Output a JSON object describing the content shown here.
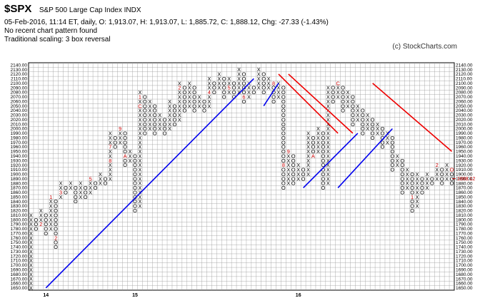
{
  "header": {
    "symbol": "$SPX",
    "name": "S&P 500 Large Cap Index  INDX",
    "stats": "05-Feb-2016, 11:14 ET, daily, O: 1,913.07, H: 1,913.07, L: 1,885.72, C: 1,888.12, Chg: -27.33 (-1.43%)",
    "pattern": "No recent chart pattern found",
    "scaling": "Traditional scaling: 3 box reversal",
    "credit": "(c) StockCharts.com"
  },
  "colors": {
    "x_mark": "#000000",
    "o_mark": "#000000",
    "month_mark": "#cc0000",
    "support": "#0000ee",
    "resistance": "#ee0000",
    "grid": "#999999",
    "last_price": "#cc0000"
  },
  "chart_data": {
    "type": "point-and-figure",
    "box_size": 10,
    "reversal": 3,
    "ylim": [
      1650,
      2140
    ],
    "y_tick_step": 10,
    "x_year_labels": [
      {
        "col": 3,
        "label": "14"
      },
      {
        "col": 21,
        "label": "15"
      },
      {
        "col": 54,
        "label": "16"
      }
    ],
    "last_price": {
      "value": 1888.12,
      "label": "1888.12"
    },
    "columns": [
      {
        "type": "X",
        "low": 1650,
        "high": 1810
      },
      {
        "type": "O",
        "low": 1780,
        "high": 1800
      },
      {
        "type": "X",
        "low": 1790,
        "high": 1820,
        "marks": [
          {
            "price": 1790,
            "label": "2"
          }
        ]
      },
      {
        "type": "O",
        "low": 1770,
        "high": 1810
      },
      {
        "type": "X",
        "low": 1780,
        "high": 1850,
        "marks": [
          {
            "price": 1850,
            "label": "1"
          }
        ]
      },
      {
        "type": "O",
        "low": 1740,
        "high": 1840,
        "marks": [
          {
            "price": 1760,
            "label": "2"
          }
        ]
      },
      {
        "type": "X",
        "low": 1850,
        "high": 1880,
        "marks": [
          {
            "price": 1860,
            "label": "3"
          }
        ]
      },
      {
        "type": "O",
        "low": 1860,
        "high": 1870
      },
      {
        "type": "X",
        "low": 1870,
        "high": 1880
      },
      {
        "type": "O",
        "low": 1840,
        "high": 1870
      },
      {
        "type": "X",
        "low": 1850,
        "high": 1880
      },
      {
        "type": "O",
        "low": 1850,
        "high": 1870
      },
      {
        "type": "X",
        "low": 1860,
        "high": 1890,
        "marks": [
          {
            "price": 1890,
            "label": "5"
          }
        ]
      },
      {
        "type": "O",
        "low": 1870,
        "high": 1880
      },
      {
        "type": "X",
        "low": 1880,
        "high": 1900
      },
      {
        "type": "O",
        "low": 1880,
        "high": 1890
      },
      {
        "type": "X",
        "low": 1890,
        "high": 1990,
        "marks": [
          {
            "price": 1930,
            "label": "8"
          },
          {
            "price": 1960,
            "label": "7"
          }
        ]
      },
      {
        "type": "O",
        "low": 1960,
        "high": 1980
      },
      {
        "type": "X",
        "low": 1970,
        "high": 2000,
        "marks": [
          {
            "price": 2000,
            "label": "9"
          }
        ]
      },
      {
        "type": "O",
        "low": 1920,
        "high": 1990,
        "marks": [
          {
            "price": 1940,
            "label": "A"
          }
        ]
      },
      {
        "type": "X",
        "low": 1930,
        "high": 1950
      },
      {
        "type": "O",
        "low": 1820,
        "high": 1940
      },
      {
        "type": "X",
        "low": 1830,
        "high": 2080,
        "marks": [
          {
            "price": 2050,
            "label": "C"
          },
          {
            "price": 2070,
            "label": "1"
          }
        ]
      },
      {
        "type": "O",
        "low": 1990,
        "high": 2070
      },
      {
        "type": "X",
        "low": 2000,
        "high": 2060
      },
      {
        "type": "O",
        "low": 1990,
        "high": 2050
      },
      {
        "type": "X",
        "low": 2000,
        "high": 2030
      },
      {
        "type": "O",
        "low": 1990,
        "high": 2020
      },
      {
        "type": "X",
        "low": 2000,
        "high": 2060
      },
      {
        "type": "O",
        "low": 2010,
        "high": 2050
      },
      {
        "type": "X",
        "low": 2020,
        "high": 2100,
        "marks": [
          {
            "price": 2090,
            "label": "2"
          }
        ]
      },
      {
        "type": "O",
        "low": 2040,
        "high": 2090
      },
      {
        "type": "X",
        "low": 2050,
        "high": 2100
      },
      {
        "type": "O",
        "low": 2040,
        "high": 2090
      },
      {
        "type": "X",
        "low": 2050,
        "high": 2070
      },
      {
        "type": "O",
        "low": 2040,
        "high": 2060
      },
      {
        "type": "X",
        "low": 2050,
        "high": 2110,
        "marks": [
          {
            "price": 2080,
            "label": "4"
          }
        ]
      },
      {
        "type": "O",
        "low": 2080,
        "high": 2100
      },
      {
        "type": "X",
        "low": 2090,
        "high": 2120
      },
      {
        "type": "O",
        "low": 2070,
        "high": 2110
      },
      {
        "type": "X",
        "low": 2080,
        "high": 2110,
        "marks": [
          {
            "price": 2090,
            "label": "5"
          }
        ]
      },
      {
        "type": "O",
        "low": 2070,
        "high": 2100
      },
      {
        "type": "X",
        "low": 2080,
        "high": 2130
      },
      {
        "type": "O",
        "low": 2060,
        "high": 2120,
        "marks": [
          {
            "price": 2070,
            "label": "6"
          }
        ]
      },
      {
        "type": "X",
        "low": 2070,
        "high": 2100
      },
      {
        "type": "O",
        "low": 2080,
        "high": 2090
      },
      {
        "type": "X",
        "low": 2090,
        "high": 2130
      },
      {
        "type": "O",
        "low": 2080,
        "high": 2120
      },
      {
        "type": "X",
        "low": 2090,
        "high": 2110
      },
      {
        "type": "O",
        "low": 2060,
        "high": 2100,
        "marks": [
          {
            "price": 2100,
            "label": "8"
          }
        ]
      },
      {
        "type": "X",
        "low": 2070,
        "high": 2100
      },
      {
        "type": "O",
        "low": 1870,
        "high": 2090,
        "marks": [
          {
            "price": 1920,
            "label": "8"
          }
        ]
      },
      {
        "type": "X",
        "low": 1880,
        "high": 1950,
        "marks": [
          {
            "price": 1950,
            "label": "9"
          }
        ]
      },
      {
        "type": "O",
        "low": 1880,
        "high": 1940
      },
      {
        "type": "X",
        "low": 1890,
        "high": 1920
      },
      {
        "type": "O",
        "low": 1890,
        "high": 1910
      },
      {
        "type": "X",
        "low": 1900,
        "high": 1990
      },
      {
        "type": "O",
        "low": 1940,
        "high": 1980,
        "marks": [
          {
            "price": 1940,
            "label": "A"
          }
        ]
      },
      {
        "type": "X",
        "low": 1950,
        "high": 2000
      },
      {
        "type": "O",
        "low": 1870,
        "high": 1990
      },
      {
        "type": "X",
        "low": 1880,
        "high": 2090,
        "marks": [
          {
            "price": 2100,
            "label": "B"
          }
        ]
      },
      {
        "type": "O",
        "low": 2060,
        "high": 2090,
        "marks": [
          {
            "price": 2100,
            "label": "0"
          }
        ]
      },
      {
        "type": "X",
        "low": 2070,
        "high": 2100,
        "marks": [
          {
            "price": 2100,
            "label": "C"
          }
        ]
      },
      {
        "type": "O",
        "low": 2040,
        "high": 2090
      },
      {
        "type": "X",
        "low": 2050,
        "high": 2080
      },
      {
        "type": "O",
        "low": 2010,
        "high": 2070
      },
      {
        "type": "X",
        "low": 2020,
        "high": 2050
      },
      {
        "type": "O",
        "low": 1990,
        "high": 2040
      },
      {
        "type": "X",
        "low": 2000,
        "high": 2030
      },
      {
        "type": "O",
        "low": 1980,
        "high": 2020
      },
      {
        "type": "X",
        "low": 1990,
        "high": 2010
      },
      {
        "type": "O",
        "low": 1960,
        "high": 2000
      },
      {
        "type": "X",
        "low": 1970,
        "high": 1990
      },
      {
        "type": "O",
        "low": 1910,
        "high": 1980
      },
      {
        "type": "X",
        "low": 1920,
        "high": 1940
      },
      {
        "type": "O",
        "low": 1860,
        "high": 1930
      },
      {
        "type": "X",
        "low": 1870,
        "high": 1910
      },
      {
        "type": "O",
        "low": 1820,
        "high": 1900,
        "marks": [
          {
            "price": 1850,
            "label": "1"
          }
        ]
      },
      {
        "type": "X",
        "low": 1830,
        "high": 1900
      },
      {
        "type": "O",
        "low": 1860,
        "high": 1890
      },
      {
        "type": "X",
        "low": 1870,
        "high": 1900
      },
      {
        "type": "O",
        "low": 1880,
        "high": 1890
      },
      {
        "type": "X",
        "low": 1890,
        "high": 1920,
        "marks": [
          {
            "price": 1920,
            "label": "2"
          }
        ]
      },
      {
        "type": "O",
        "low": 1880,
        "high": 1910
      },
      {
        "type": "X",
        "low": 1890,
        "high": 1920
      },
      {
        "type": "O",
        "low": 1880,
        "high": 1910,
        "marks": [
          {
            "price": 1910,
            "label": "O"
          }
        ]
      }
    ],
    "trendlines": [
      {
        "kind": "support",
        "from": {
          "col": 3,
          "price": 1650
        },
        "to": {
          "col": 45,
          "price": 2110
        }
      },
      {
        "kind": "support",
        "from": {
          "col": 47,
          "price": 2050
        },
        "to": {
          "col": 50,
          "price": 2100
        }
      },
      {
        "kind": "resistance",
        "from": {
          "col": 50,
          "price": 2120
        },
        "to": {
          "col": 62,
          "price": 1990
        }
      },
      {
        "kind": "resistance",
        "from": {
          "col": 52,
          "price": 2120
        },
        "to": {
          "col": 65,
          "price": 1990
        }
      },
      {
        "kind": "support",
        "from": {
          "col": 55,
          "price": 1870
        },
        "to": {
          "col": 66,
          "price": 1990
        }
      },
      {
        "kind": "support",
        "from": {
          "col": 62,
          "price": 1870
        },
        "to": {
          "col": 73,
          "price": 2000
        }
      },
      {
        "kind": "resistance",
        "from": {
          "col": 69,
          "price": 2100
        },
        "to": {
          "col": 85,
          "price": 1950
        }
      }
    ]
  }
}
